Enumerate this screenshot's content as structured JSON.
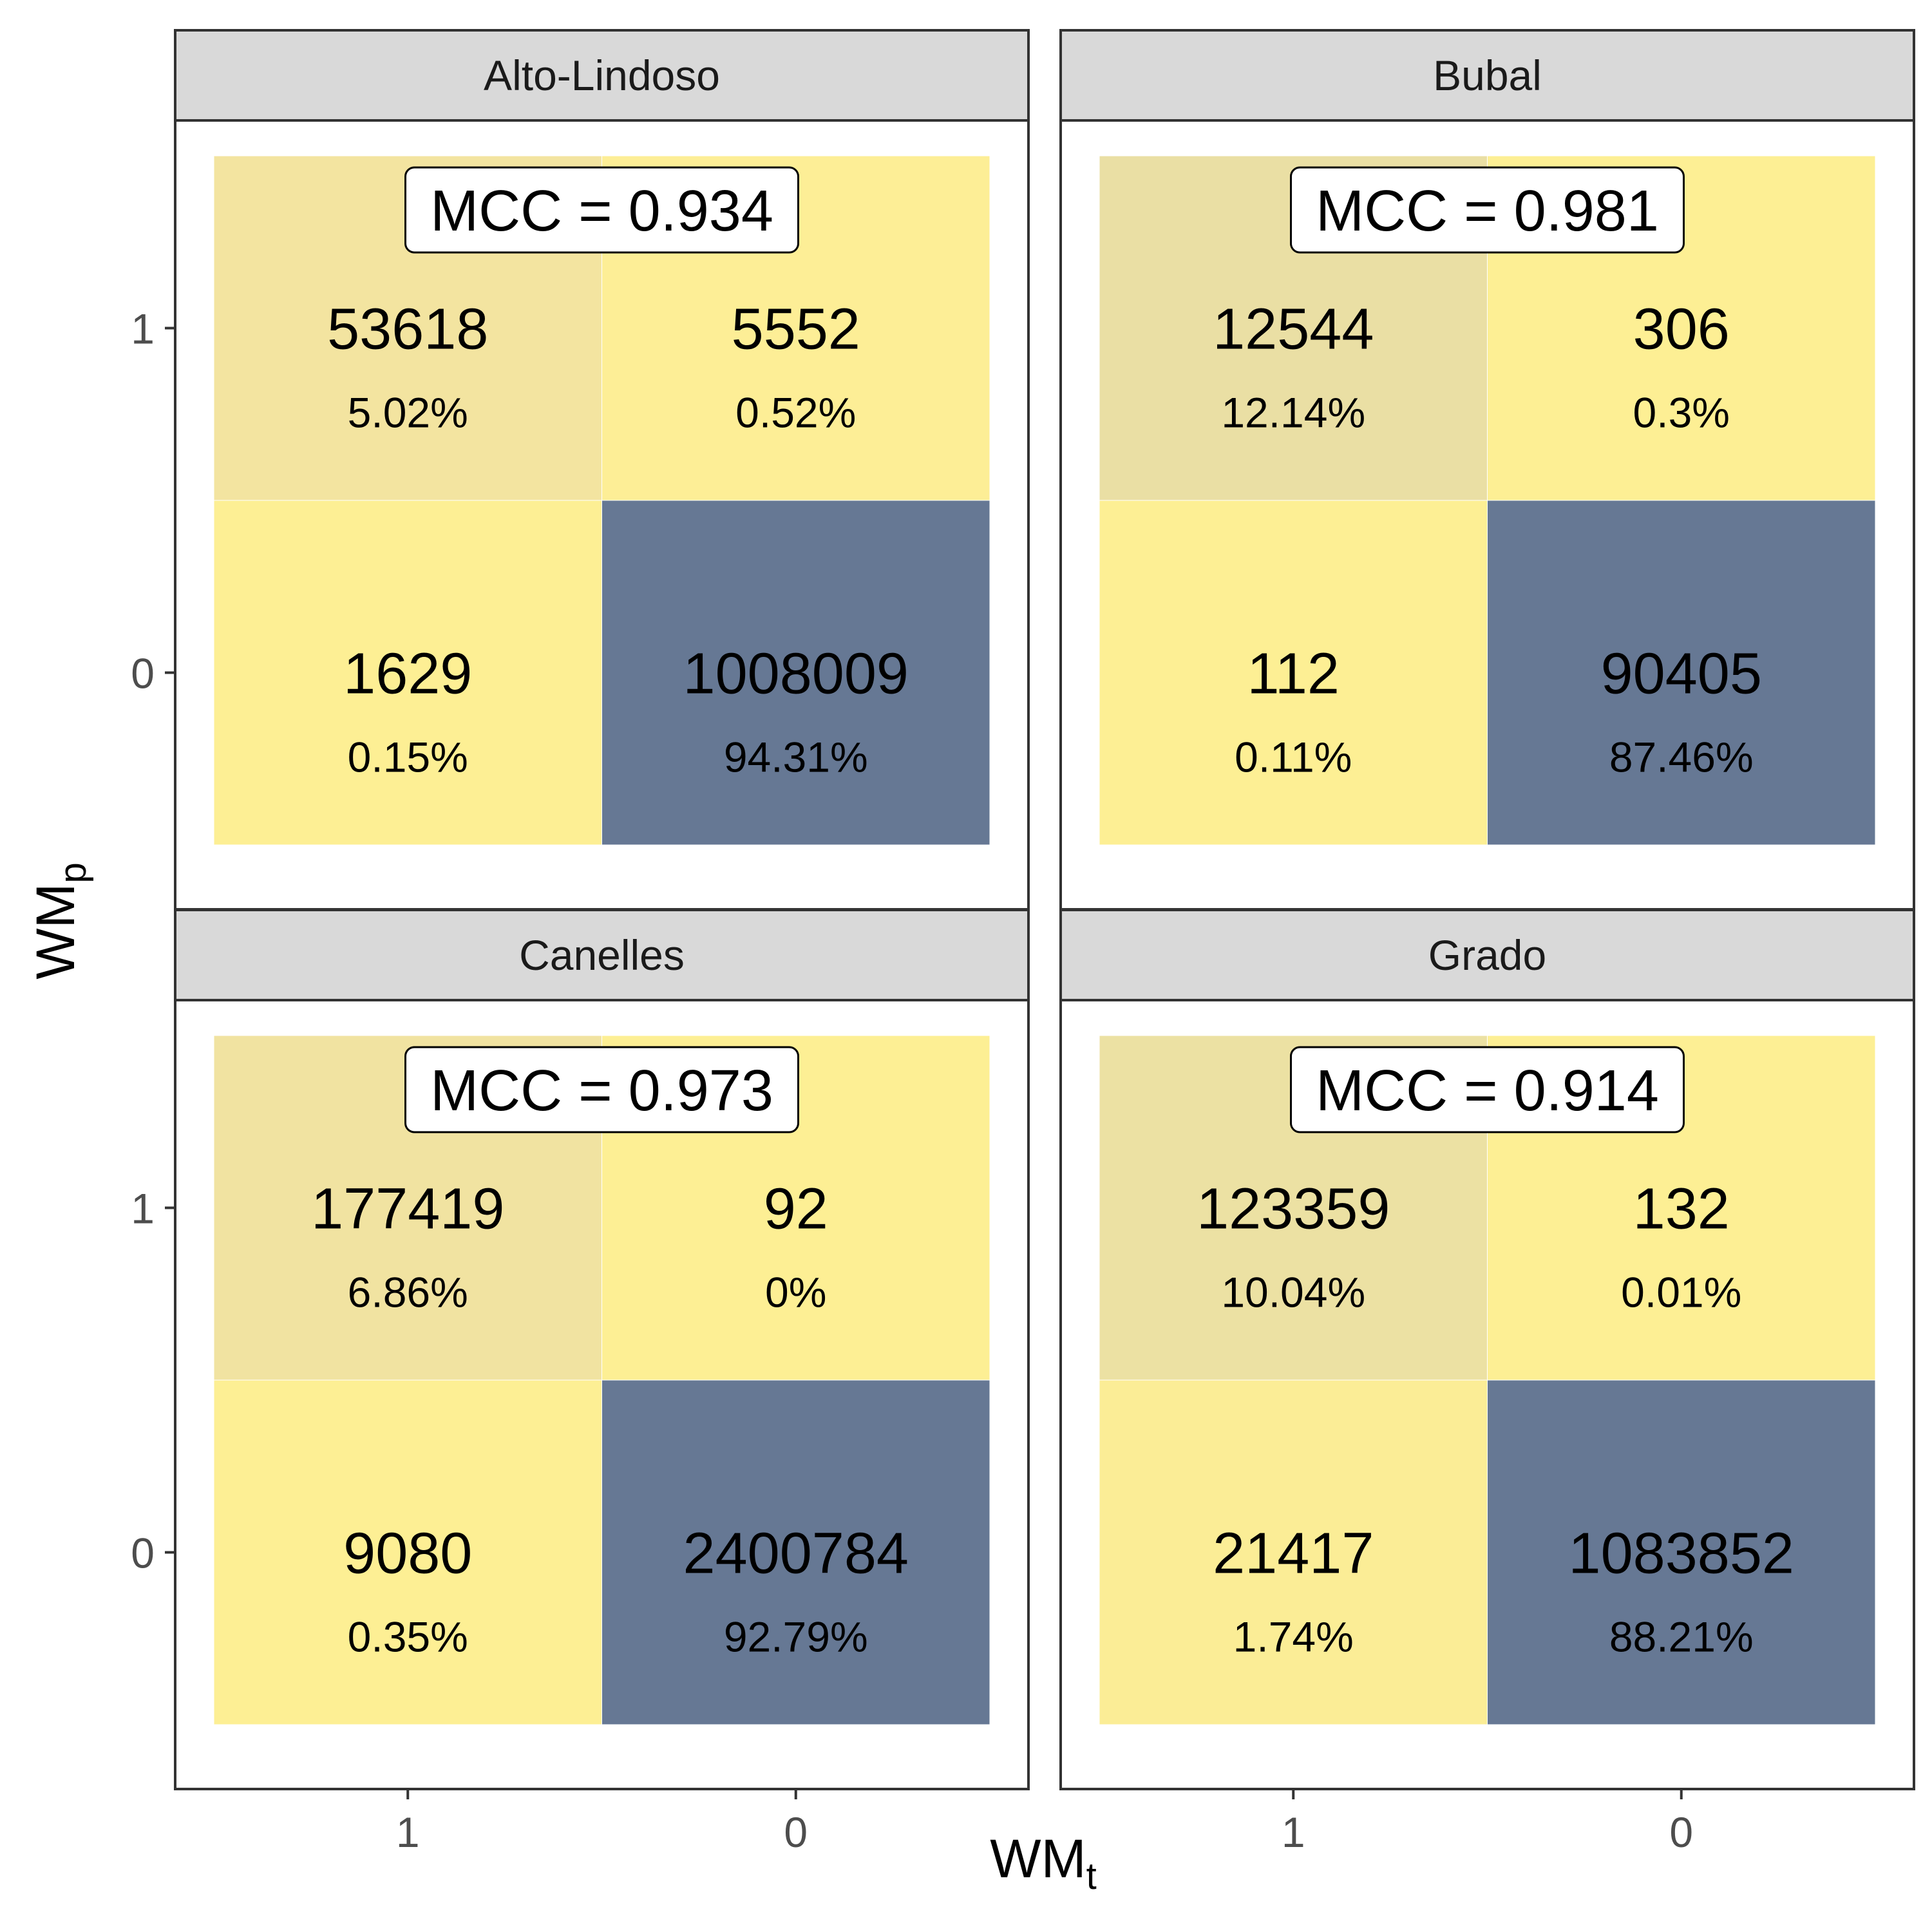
{
  "chart_data": [
    {
      "type": "heatmap",
      "panel": "Alto-Lindoso",
      "xlabel": "WMt",
      "ylabel": "WMp",
      "x_categories": [
        "1",
        "0"
      ],
      "y_categories": [
        "1",
        "0"
      ],
      "annotation": "MCC = 0.934",
      "cells": [
        {
          "x": "1",
          "y": "1",
          "count": "53618",
          "percent": "5.02%",
          "value": 53618,
          "color": "#f3e4a0"
        },
        {
          "x": "0",
          "y": "1",
          "count": "5552",
          "percent": "0.52%",
          "value": 5552,
          "color": "#fdee96"
        },
        {
          "x": "1",
          "y": "0",
          "count": "1629",
          "percent": "0.15%",
          "value": 1629,
          "color": "#fdef94"
        },
        {
          "x": "0",
          "y": "0",
          "count": "1008009",
          "percent": "94.31%",
          "value": 1008009,
          "color": "#667894"
        }
      ]
    },
    {
      "type": "heatmap",
      "panel": "Bubal",
      "xlabel": "WMt",
      "ylabel": "WMp",
      "x_categories": [
        "1",
        "0"
      ],
      "y_categories": [
        "1",
        "0"
      ],
      "annotation": "MCC = 0.981",
      "cells": [
        {
          "x": "1",
          "y": "1",
          "count": "12544",
          "percent": "12.14%",
          "value": 12544,
          "color": "#eadfa4"
        },
        {
          "x": "0",
          "y": "1",
          "count": "306",
          "percent": "0.3%",
          "value": 306,
          "color": "#fdef94"
        },
        {
          "x": "1",
          "y": "0",
          "count": "112",
          "percent": "0.11%",
          "value": 112,
          "color": "#fdef94"
        },
        {
          "x": "0",
          "y": "0",
          "count": "90405",
          "percent": "87.46%",
          "value": 90405,
          "color": "#667894"
        }
      ]
    },
    {
      "type": "heatmap",
      "panel": "Canelles",
      "xlabel": "WMt",
      "ylabel": "WMp",
      "x_categories": [
        "1",
        "0"
      ],
      "y_categories": [
        "1",
        "0"
      ],
      "annotation": "MCC = 0.973",
      "cells": [
        {
          "x": "1",
          "y": "1",
          "count": "177419",
          "percent": "6.86%",
          "value": 177419,
          "color": "#f1e3a1"
        },
        {
          "x": "0",
          "y": "1",
          "count": "92",
          "percent": "0%",
          "value": 92,
          "color": "#fdef94"
        },
        {
          "x": "1",
          "y": "0",
          "count": "9080",
          "percent": "0.35%",
          "value": 9080,
          "color": "#fdef94"
        },
        {
          "x": "0",
          "y": "0",
          "count": "2400784",
          "percent": "92.79%",
          "value": 2400784,
          "color": "#667894"
        }
      ]
    },
    {
      "type": "heatmap",
      "panel": "Grado",
      "xlabel": "WMt",
      "ylabel": "WMp",
      "x_categories": [
        "1",
        "0"
      ],
      "y_categories": [
        "1",
        "0"
      ],
      "annotation": "MCC = 0.914",
      "cells": [
        {
          "x": "1",
          "y": "1",
          "count": "123359",
          "percent": "10.04%",
          "value": 123359,
          "color": "#ece1a3"
        },
        {
          "x": "0",
          "y": "1",
          "count": "132",
          "percent": "0.01%",
          "value": 132,
          "color": "#fdef94"
        },
        {
          "x": "1",
          "y": "0",
          "count": "21417",
          "percent": "1.74%",
          "value": 21417,
          "color": "#fbed96"
        },
        {
          "x": "0",
          "y": "0",
          "count": "1083852",
          "percent": "88.21%",
          "value": 1083852,
          "color": "#667894"
        }
      ]
    }
  ],
  "axes": {
    "x_title_main": "WM",
    "x_title_sub": "t",
    "y_title_main": "WM",
    "y_title_sub": "p"
  },
  "colors": {
    "strip_fill": "#d9d9d9",
    "panel_border": "#333333",
    "tick_color": "#333333"
  }
}
